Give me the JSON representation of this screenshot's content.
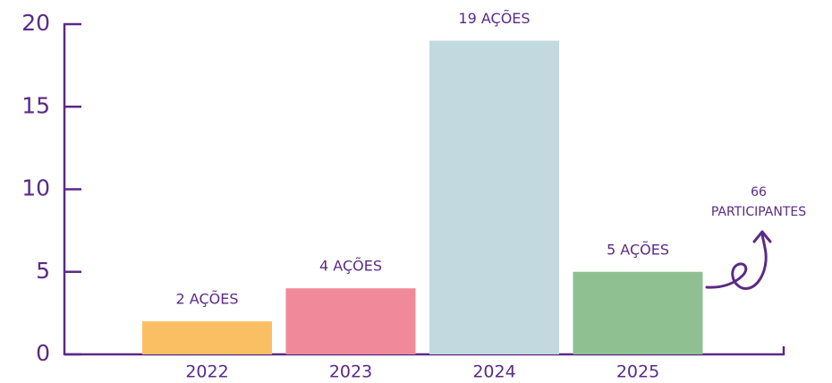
{
  "chart_data": {
    "type": "bar",
    "categories": [
      "2022",
      "2023",
      "2024",
      "2025"
    ],
    "values": [
      2,
      4,
      19,
      5
    ],
    "value_labels": [
      "2 AÇÕES",
      "4 AÇÕES",
      "19 AÇÕES",
      "5 AÇÕES"
    ],
    "colors": [
      "#fbbf63",
      "#f08a9b",
      "#c2dadf",
      "#8ec092"
    ],
    "ylim": [
      0,
      20
    ],
    "yticks": [
      0,
      5,
      10,
      15,
      20
    ],
    "annotation": [
      "66",
      "PARTICIPANTES"
    ]
  }
}
